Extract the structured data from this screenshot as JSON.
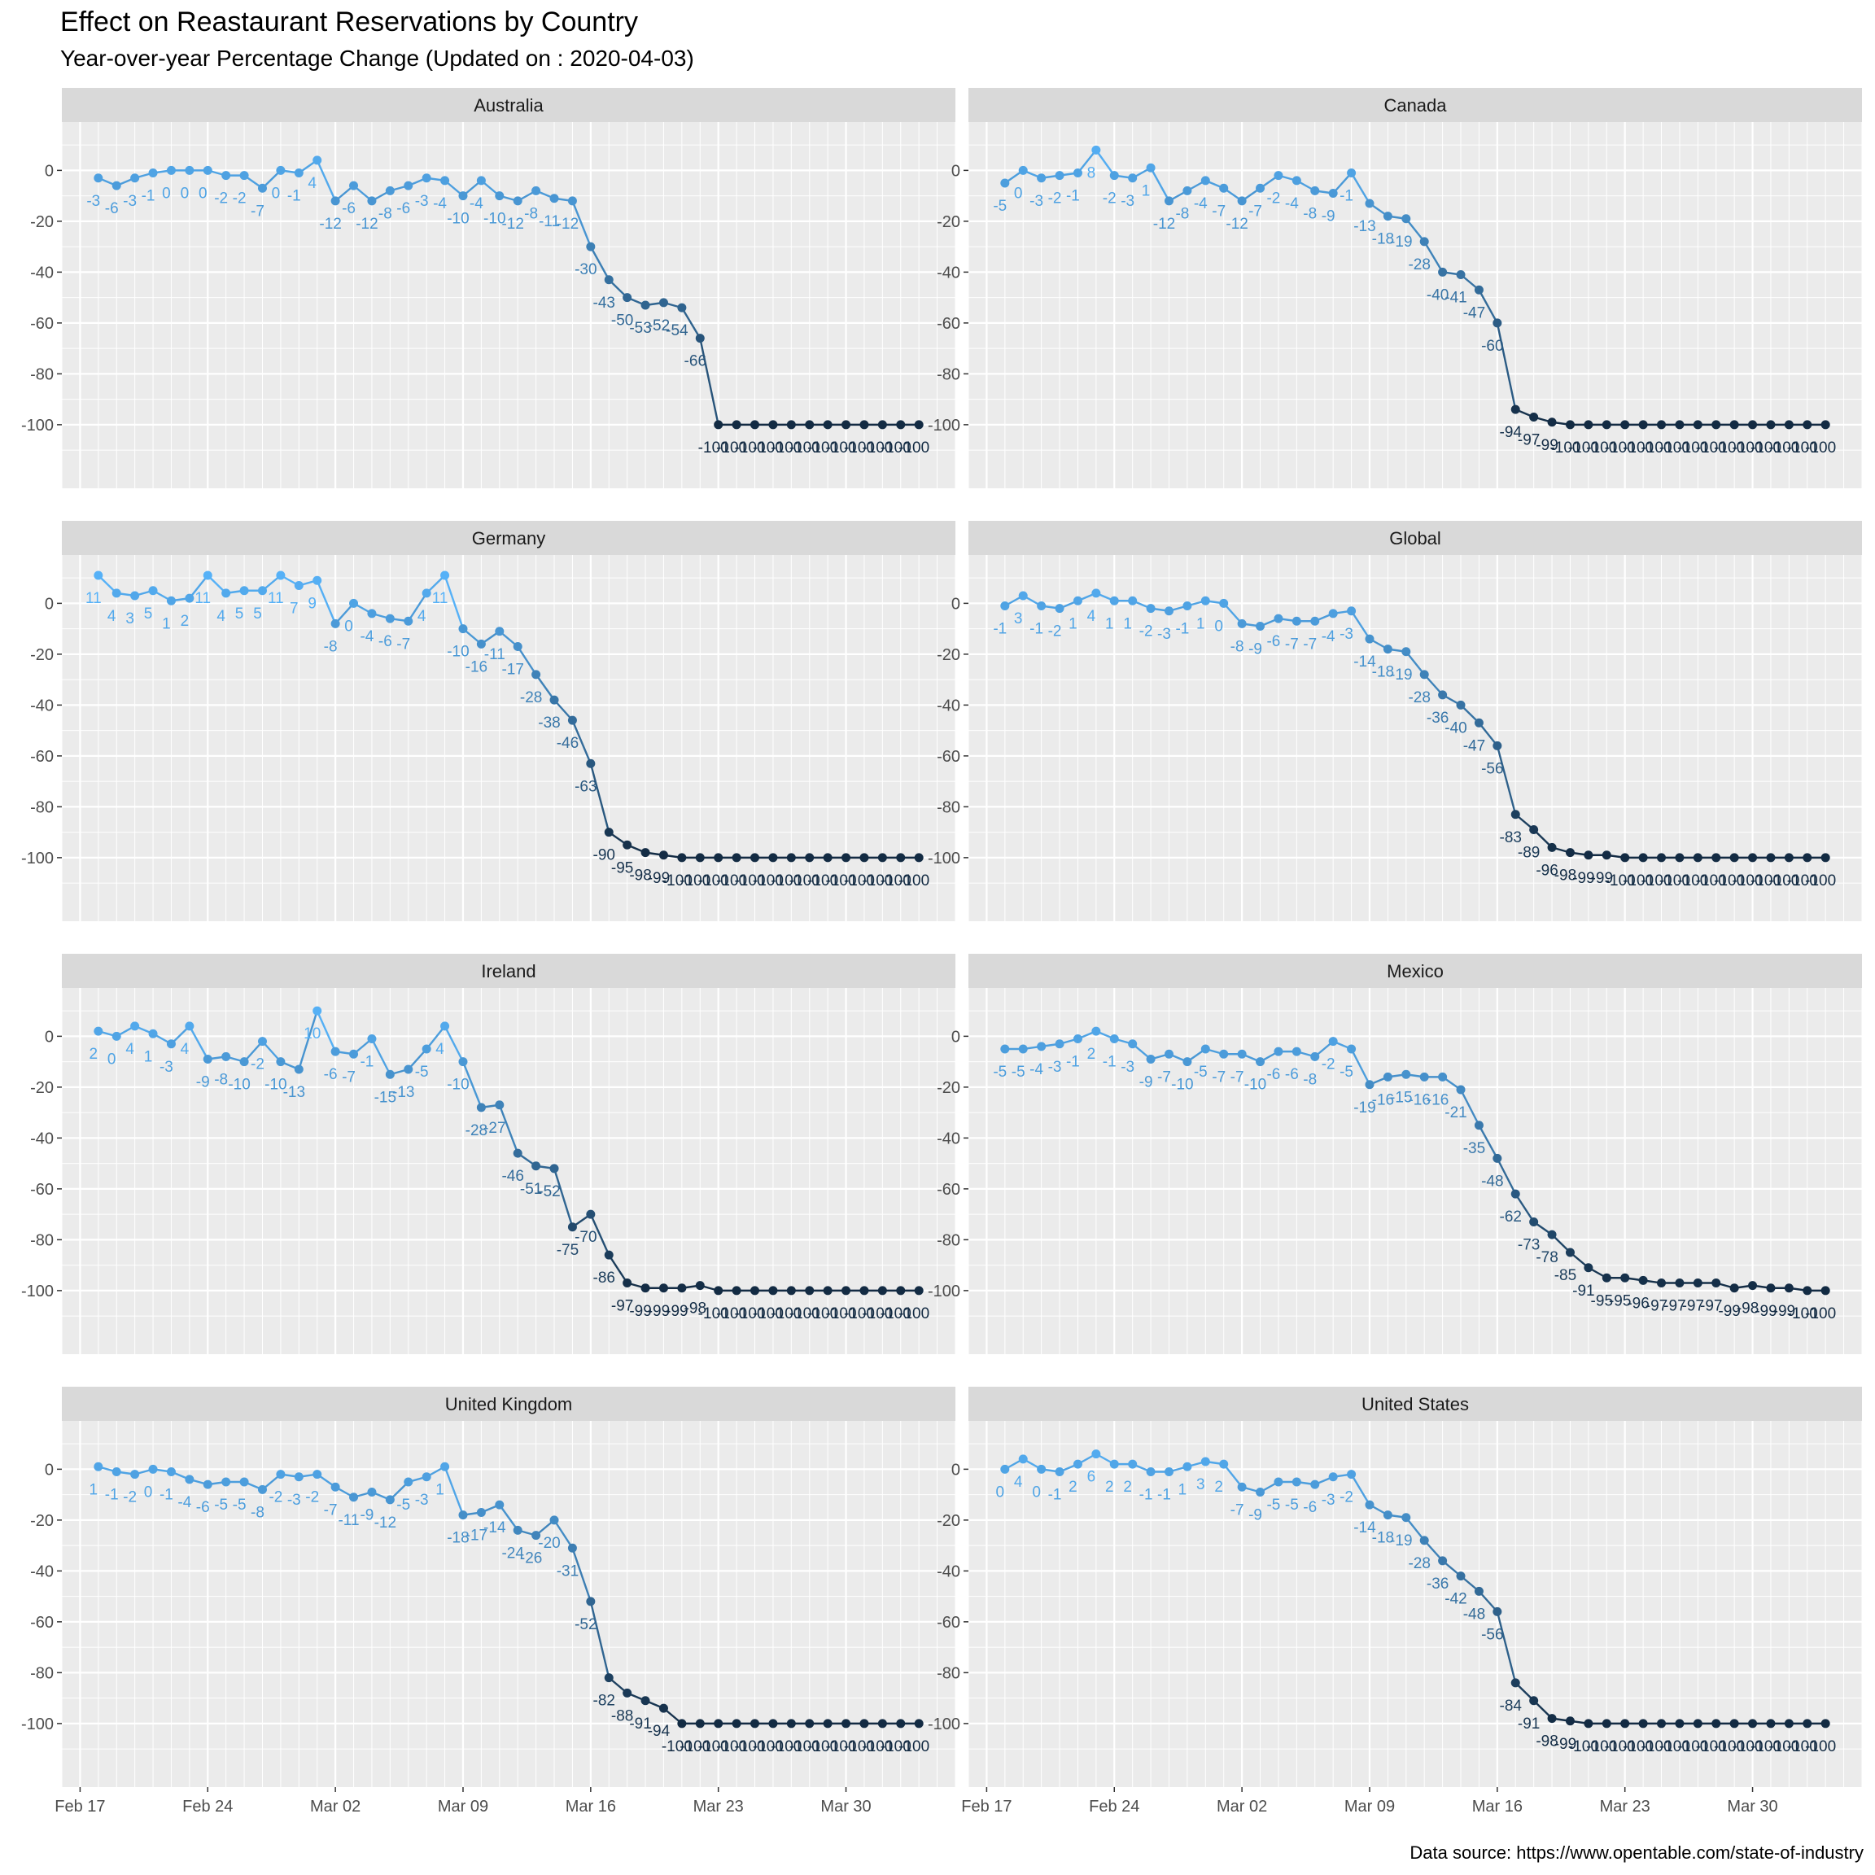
{
  "chart_data": {
    "type": "line",
    "title": "Effect on Reastaurant Reservations by Country",
    "subtitle": "Year-over-year Percentage Change (Updated on : 2020-04-03)",
    "caption": "Data source: https://www.opentable.com/state-of-industry",
    "x_start_date": "2020-02-18",
    "x_end_date": "2020-04-03",
    "xlim": [
      "2020-02-16",
      "2020-04-05"
    ],
    "ylim": [
      -125,
      19
    ],
    "y_ticks": [
      0,
      -20,
      -40,
      -60,
      -80,
      -100
    ],
    "y_tick_labels": [
      "0",
      "-20",
      "-40",
      "-60",
      "-80",
      "-100"
    ],
    "x_ticks": [
      "2020-02-17",
      "2020-02-24",
      "2020-03-02",
      "2020-03-09",
      "2020-03-16",
      "2020-03-23",
      "2020-03-30"
    ],
    "x_tick_labels": [
      "Feb 17",
      "Feb 24",
      "Mar 02",
      "Mar 09",
      "Mar 16",
      "Mar 23",
      "Mar 30"
    ],
    "grid": true,
    "legend": "none",
    "color_scale": {
      "low": "#132B43",
      "high": "#56B1F7",
      "domain": [
        -100,
        11
      ]
    },
    "colors": {
      "panel_bg": "#EBEBEB",
      "strip_bg": "#D9D9D9",
      "grid": "#FFFFFF",
      "axis_text": "#4D4D4D",
      "strip_text": "#1A1A1A"
    },
    "series": [
      {
        "name": "Australia",
        "values": [
          -3,
          -6,
          -3,
          -1,
          0,
          0,
          0,
          -2,
          -2,
          -7,
          0,
          -1,
          4,
          -12,
          -6,
          -12,
          -8,
          -6,
          -3,
          -4,
          -10,
          -4,
          -10,
          -12,
          -8,
          -11,
          -12,
          -30,
          -43,
          -50,
          -53,
          -52,
          -54,
          -66,
          -100,
          -100,
          -100,
          -100,
          -100,
          -100,
          -100,
          -100,
          -100,
          -100,
          -100,
          -100
        ]
      },
      {
        "name": "Canada",
        "values": [
          -5,
          0,
          -3,
          -2,
          -1,
          8,
          -2,
          -3,
          1,
          -12,
          -8,
          -4,
          -7,
          -12,
          -7,
          -2,
          -4,
          -8,
          -9,
          -1,
          -13,
          -18,
          -19,
          -28,
          -40,
          -41,
          -47,
          -60,
          -94,
          -97,
          -99,
          -100,
          -100,
          -100,
          -100,
          -100,
          -100,
          -100,
          -100,
          -100,
          -100,
          -100,
          -100,
          -100,
          -100,
          -100
        ]
      },
      {
        "name": "Germany",
        "values": [
          11,
          4,
          3,
          5,
          1,
          2,
          11,
          4,
          5,
          5,
          11,
          7,
          9,
          -8,
          0,
          -4,
          -6,
          -7,
          4,
          11,
          -10,
          -16,
          -11,
          -17,
          -28,
          -38,
          -46,
          -63,
          -90,
          -95,
          -98,
          -99,
          -100,
          -100,
          -100,
          -100,
          -100,
          -100,
          -100,
          -100,
          -100,
          -100,
          -100,
          -100,
          -100,
          -100
        ]
      },
      {
        "name": "Global",
        "values": [
          -1,
          3,
          -1,
          -2,
          1,
          4,
          1,
          1,
          -2,
          -3,
          -1,
          1,
          0,
          -8,
          -9,
          -6,
          -7,
          -7,
          -4,
          -3,
          -14,
          -18,
          -19,
          -28,
          -36,
          -40,
          -47,
          -56,
          -83,
          -89,
          -96,
          -98,
          -99,
          -99,
          -100,
          -100,
          -100,
          -100,
          -100,
          -100,
          -100,
          -100,
          -100,
          -100,
          -100,
          -100
        ]
      },
      {
        "name": "Ireland",
        "values": [
          2,
          0,
          4,
          1,
          -3,
          4,
          -9,
          -8,
          -10,
          -2,
          -10,
          -13,
          10,
          -6,
          -7,
          -1,
          -15,
          -13,
          -5,
          4,
          -10,
          -28,
          -27,
          -46,
          -51,
          -52,
          -75,
          -70,
          -86,
          -97,
          -99,
          -99,
          -99,
          -98,
          -100,
          -100,
          -100,
          -100,
          -100,
          -100,
          -100,
          -100,
          -100,
          -100,
          -100,
          -100
        ]
      },
      {
        "name": "Mexico",
        "values": [
          -5,
          -5,
          -4,
          -3,
          -1,
          2,
          -1,
          -3,
          -9,
          -7,
          -10,
          -5,
          -7,
          -7,
          -10,
          -6,
          -6,
          -8,
          -2,
          -5,
          -19,
          -16,
          -15,
          -16,
          -16,
          -21,
          -35,
          -48,
          -62,
          -73,
          -78,
          -85,
          -91,
          -95,
          -95,
          -96,
          -97,
          -97,
          -97,
          -97,
          -99,
          -98,
          -99,
          -99,
          -100,
          -100
        ]
      },
      {
        "name": "United Kingdom",
        "values": [
          1,
          -1,
          -2,
          0,
          -1,
          -4,
          -6,
          -5,
          -5,
          -8,
          -2,
          -3,
          -2,
          -7,
          -11,
          -9,
          -12,
          -5,
          -3,
          1,
          -18,
          -17,
          -14,
          -24,
          -26,
          -20,
          -31,
          -52,
          -82,
          -88,
          -91,
          -94,
          -100,
          -100,
          -100,
          -100,
          -100,
          -100,
          -100,
          -100,
          -100,
          -100,
          -100,
          -100,
          -100,
          -100
        ]
      },
      {
        "name": "United States",
        "values": [
          0,
          4,
          0,
          -1,
          2,
          6,
          2,
          2,
          -1,
          -1,
          1,
          3,
          2,
          -7,
          -9,
          -5,
          -5,
          -6,
          -3,
          -2,
          -14,
          -18,
          -19,
          -28,
          -36,
          -42,
          -48,
          -56,
          -84,
          -91,
          -98,
          -99,
          -100,
          -100,
          -100,
          -100,
          -100,
          -100,
          -100,
          -100,
          -100,
          -100,
          -100,
          -100,
          -100,
          -100
        ]
      }
    ]
  }
}
